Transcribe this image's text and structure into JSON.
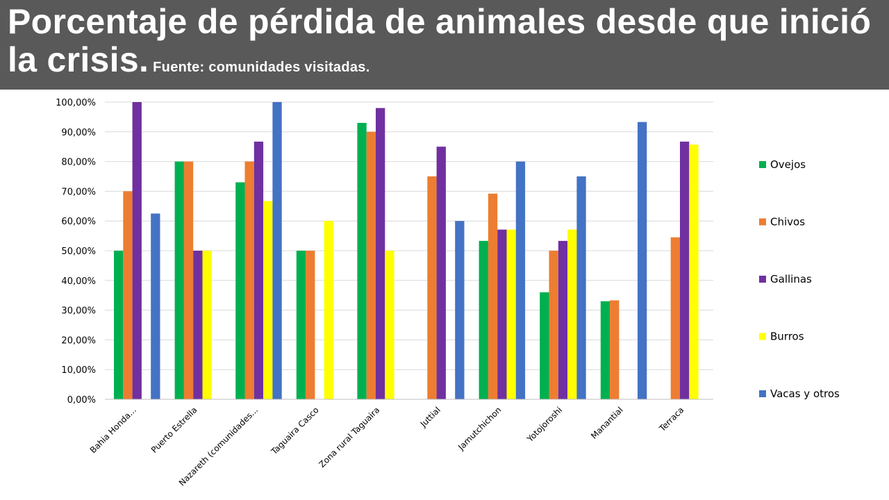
{
  "title": {
    "main": "Porcentaje de pérdida de animales desde que inició la crisis.",
    "source": "Fuente: comunidades visitadas."
  },
  "chart_data": {
    "type": "bar",
    "title": "",
    "xlabel": "",
    "ylabel": "",
    "ylim": [
      0,
      100
    ],
    "grid": true,
    "legend_position": "right",
    "y_ticks": [
      "0,00%",
      "10,00%",
      "20,00%",
      "30,00%",
      "40,00%",
      "50,00%",
      "60,00%",
      "70,00%",
      "80,00%",
      "90,00%",
      "100,00%"
    ],
    "categories": [
      "Bahia Honda...",
      "Puerto Estrella",
      "Nazareth (comunidades...",
      "Taguaira Casco",
      "Zona rural Taguaira",
      "Juttial",
      "Jamutchichon",
      "Yotojoroshi",
      "Manantial",
      "Terraca"
    ],
    "series": [
      {
        "name": "Ovejos",
        "color": "#00b050",
        "values": [
          50,
          80,
          73,
          50,
          93,
          null,
          53.3,
          36,
          33,
          null
        ]
      },
      {
        "name": "Chivos",
        "color": "#ed7d31",
        "values": [
          70,
          80,
          80,
          50,
          90,
          75,
          69.2,
          50,
          33.3,
          54.5
        ]
      },
      {
        "name": "Gallinas",
        "color": "#7030a0",
        "values": [
          100,
          50,
          86.7,
          null,
          98,
          85,
          57.1,
          53.3,
          null,
          86.7
        ]
      },
      {
        "name": "Burros",
        "color": "#ffff00",
        "values": [
          null,
          50,
          66.7,
          60,
          50,
          null,
          57.1,
          57.1,
          null,
          85.7
        ]
      },
      {
        "name": "Vacas y otros",
        "color": "#4472c4",
        "values": [
          62.5,
          null,
          100,
          null,
          null,
          60,
          80,
          75,
          93.3,
          null
        ]
      }
    ]
  }
}
